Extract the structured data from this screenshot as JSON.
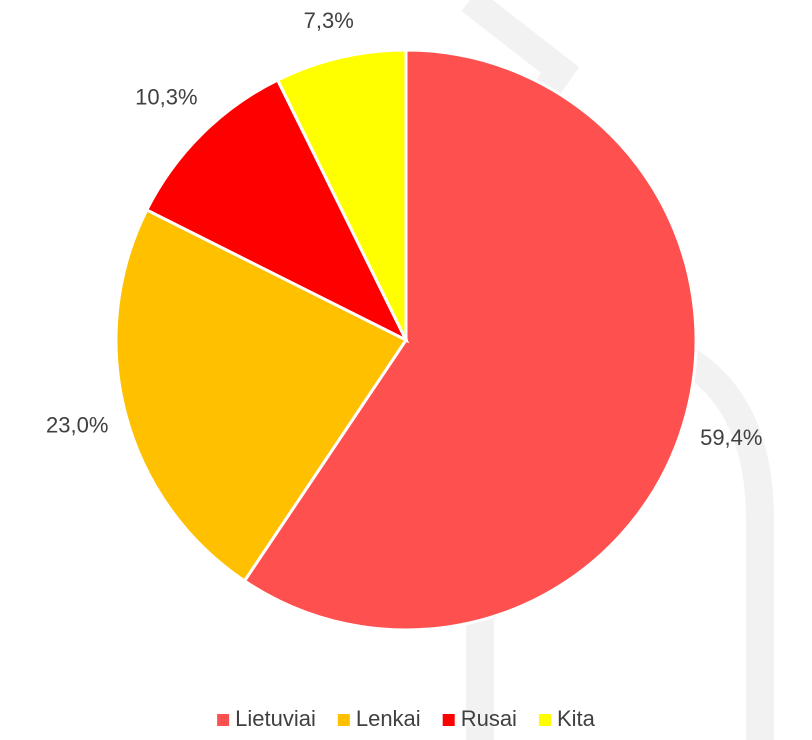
{
  "chart_data": {
    "type": "pie",
    "categories": [
      "Lietuviai",
      "Lenkai",
      "Rusai",
      "Kita"
    ],
    "values": [
      59.4,
      23.0,
      10.3,
      7.3
    ],
    "value_labels": [
      "59,4%",
      "23,0%",
      "10,3%",
      "7,3%"
    ],
    "colors": [
      "#ff5050",
      "#ffc000",
      "#ff0000",
      "#ffff00"
    ],
    "legend": "bottom"
  }
}
